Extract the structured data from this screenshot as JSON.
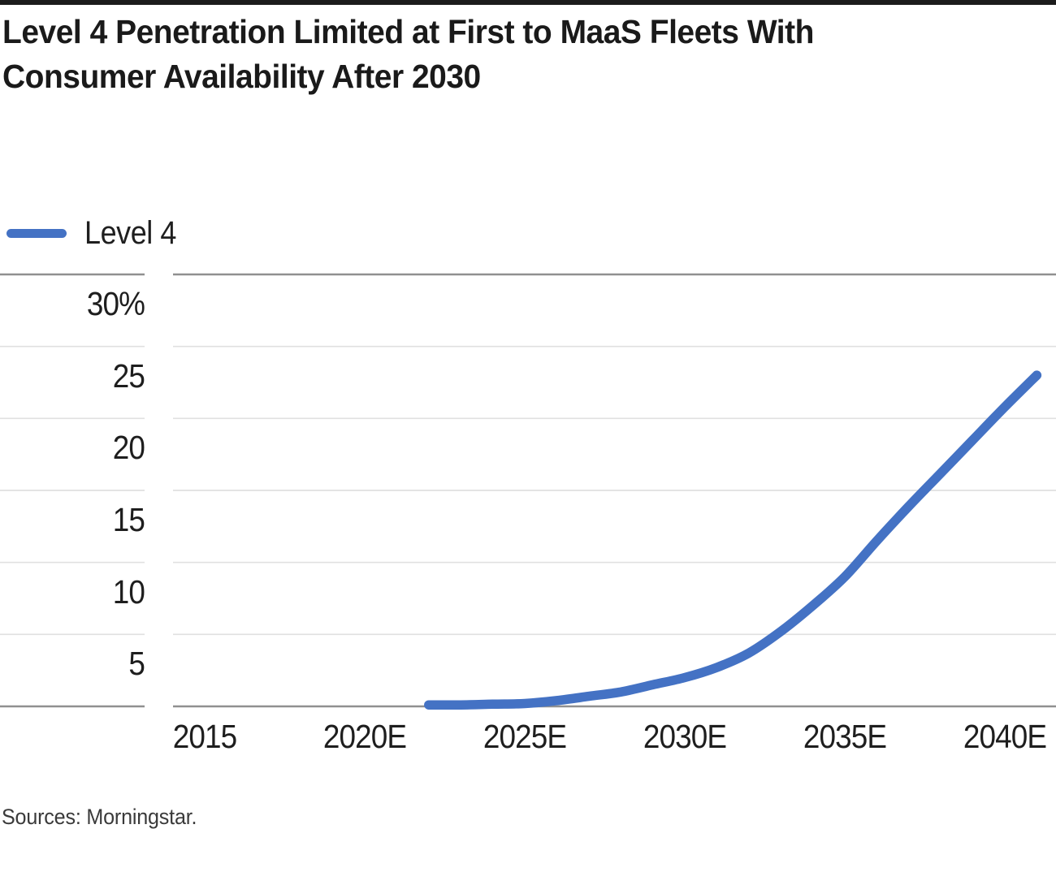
{
  "page": {
    "background": "#ffffff",
    "top_rule_color": "#1c1c1c"
  },
  "header": {
    "title": "Level 4 Penetration Limited at First to MaaS Fleets With Consumer Availability After 2030",
    "title_lines": [
      "Level 4 Penetration Limited at First to MaaS Fleets With",
      "Consumer Availability After 2030"
    ]
  },
  "legend": {
    "position": "top-left",
    "items": [
      {
        "label": "Level 4",
        "color": "#4472c4",
        "marker": "line"
      }
    ]
  },
  "chart_data": {
    "type": "line",
    "title": "Level 4 Penetration Limited at First to MaaS Fleets With Consumer Availability After 2030",
    "xlabel": "",
    "ylabel": "",
    "x": [
      2022,
      2023,
      2024,
      2025,
      2026,
      2027,
      2028,
      2029,
      2030,
      2031,
      2032,
      2033,
      2034,
      2035,
      2036,
      2037,
      2038,
      2039,
      2040,
      2041
    ],
    "series": [
      {
        "name": "Level 4",
        "color": "#4472c4",
        "values": [
          0.1,
          0.1,
          0.15,
          0.2,
          0.4,
          0.7,
          1.0,
          1.5,
          2.0,
          2.7,
          3.7,
          5.2,
          7.0,
          9.0,
          11.5,
          13.9,
          16.2,
          18.5,
          20.8,
          23.0
        ]
      }
    ],
    "x_ticks": [
      {
        "year": 2015,
        "label": "2015"
      },
      {
        "year": 2020,
        "label": "2020E"
      },
      {
        "year": 2025,
        "label": "2025E"
      },
      {
        "year": 2030,
        "label": "2030E"
      },
      {
        "year": 2035,
        "label": "2035E"
      },
      {
        "year": 2040,
        "label": "2040E"
      }
    ],
    "y_ticks": [
      {
        "value": 30,
        "label": "30%"
      },
      {
        "value": 25,
        "label": "25"
      },
      {
        "value": 20,
        "label": "20"
      },
      {
        "value": 15,
        "label": "15"
      },
      {
        "value": 10,
        "label": "10"
      },
      {
        "value": 5,
        "label": "5"
      },
      {
        "value": 0,
        "label": ""
      }
    ],
    "ylim": [
      0,
      30
    ],
    "xlim": [
      2014,
      2041.7
    ],
    "grid": "horizontal",
    "grid_color": "#e0e0e0",
    "axis_boundary_color": "#909090",
    "legend_position": "top-left"
  },
  "footer": {
    "source": "Sources: Morningstar."
  }
}
